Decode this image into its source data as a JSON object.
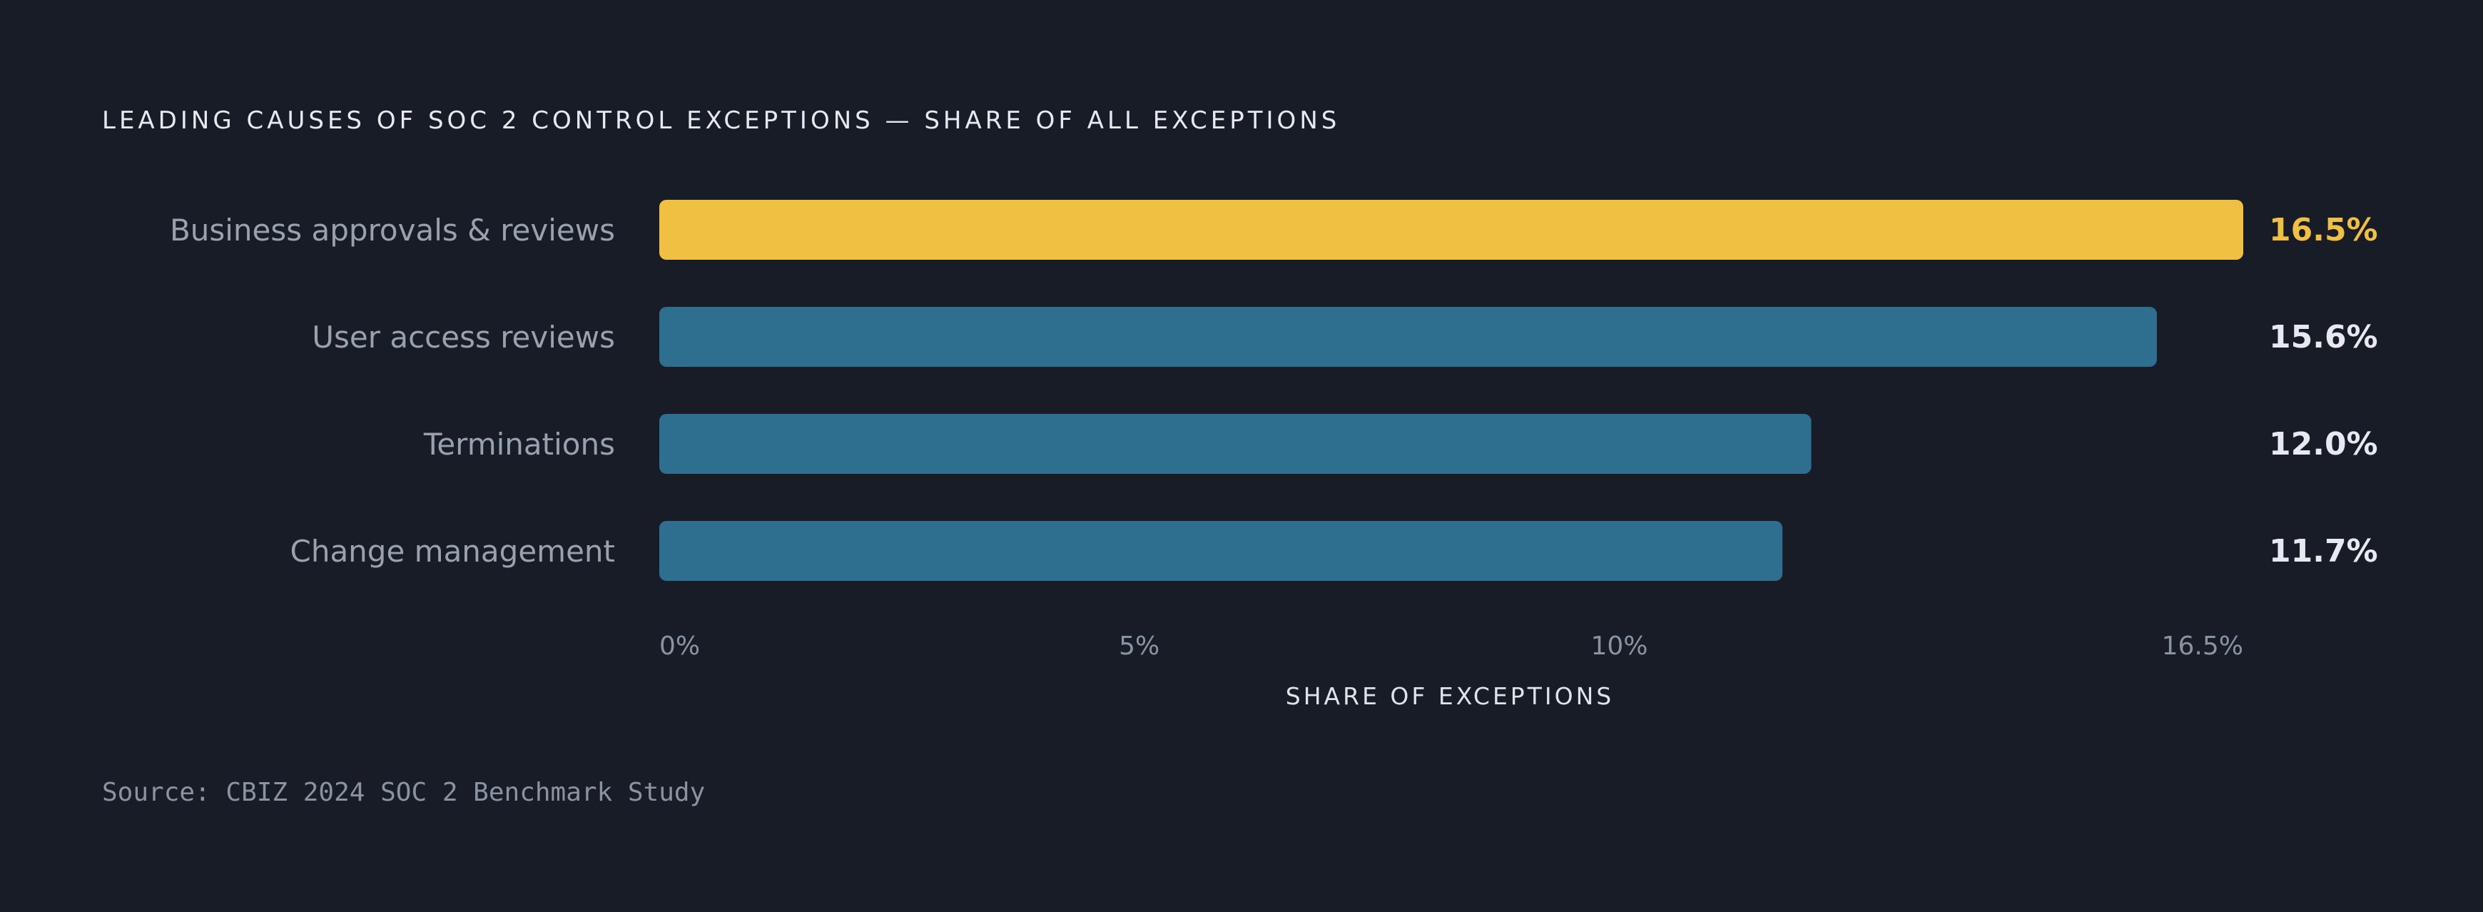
{
  "colors": {
    "background": "#171c27",
    "highlight_bar": "#f0c043",
    "default_bar": "#2e6e8f",
    "highlight_value": "#f0c043",
    "default_value": "#e6e9ef"
  },
  "chart_data": {
    "type": "bar",
    "orientation": "horizontal",
    "title": "LEADING CAUSES OF SOC 2 CONTROL EXCEPTIONS — SHARE OF ALL EXCEPTIONS",
    "xlabel": "SHARE OF EXCEPTIONS",
    "categories": [
      "Business approvals & reviews",
      "User access reviews",
      "Terminations",
      "Change management"
    ],
    "values": [
      16.5,
      15.6,
      12.0,
      11.7
    ],
    "value_labels": [
      "16.5%",
      "15.6%",
      "12.0%",
      "11.7%"
    ],
    "highlighted": [
      true,
      false,
      false,
      false
    ],
    "xlim": [
      0,
      16.5
    ],
    "x_ticks": [
      {
        "value": 0,
        "label": "0%"
      },
      {
        "value": 5,
        "label": "5%"
      },
      {
        "value": 10,
        "label": "10%"
      },
      {
        "value": 16.5,
        "label": "16.5%"
      }
    ],
    "grid": false,
    "legend": "none"
  },
  "source": "Source: CBIZ 2024 SOC 2 Benchmark Study"
}
